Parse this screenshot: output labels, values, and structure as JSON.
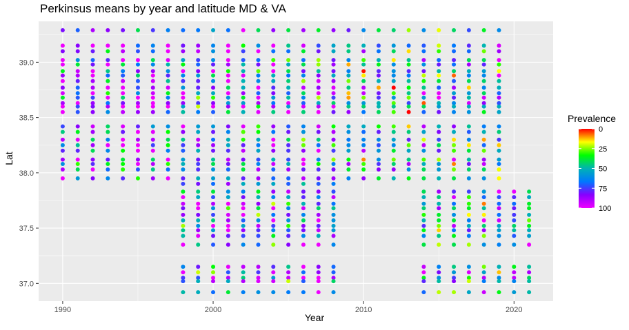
{
  "chart_data": {
    "type": "scatter",
    "title": "Perkinsus means by year and latitude MD & VA",
    "xlabel": "Year",
    "ylabel": "Lat",
    "xlim": [
      1988.4,
      2022.6
    ],
    "ylim": [
      36.84,
      39.37
    ],
    "x_ticks": [
      1990,
      2000,
      2010,
      2020
    ],
    "y_ticks": [
      37.0,
      37.5,
      38.0,
      38.5,
      39.0
    ],
    "grid": true,
    "legend": {
      "title": "Prevalence",
      "placement": "right",
      "ticks": [
        0,
        25,
        50,
        75,
        100
      ],
      "colormap": [
        "#ff0000",
        "#ffff00",
        "#00ff00",
        "#00b3b3",
        "#0077ff",
        "#8800ff",
        "#ee00ff"
      ],
      "reversed": true
    },
    "colors": {
      "panel_background": "#ebebeb",
      "grid_major": "#ffffff",
      "tick_label": "#4d4d4d"
    },
    "series": [
      {
        "years": [
          1990,
          1991,
          1992,
          1993,
          1994,
          1995,
          1996,
          1997
        ],
        "lats": [
          39.29,
          39.15,
          39.1,
          39.02,
          38.98,
          38.92,
          38.88,
          38.83,
          38.77,
          38.72,
          38.68,
          38.63,
          38.6,
          38.55,
          38.42,
          38.37,
          38.3,
          38.25,
          38.2,
          38.12,
          38.08,
          38.03,
          37.95
        ],
        "prevalence_mean": 80
      },
      {
        "years": [
          1998,
          1999,
          2000,
          2001,
          2002,
          2003,
          2004,
          2005,
          2006,
          2007,
          2008
        ],
        "lats": [
          39.29,
          39.15,
          39.1,
          39.02,
          38.98,
          38.92,
          38.88,
          38.83,
          38.77,
          38.72,
          38.68,
          38.63,
          38.6,
          38.55,
          38.42,
          38.37,
          38.3,
          38.25,
          38.2,
          38.12,
          38.08,
          38.03,
          37.95,
          37.9,
          37.83,
          37.78,
          37.72,
          37.68,
          37.62,
          37.57,
          37.52,
          37.48,
          37.43,
          37.35,
          37.15,
          37.1,
          37.05,
          37.02,
          36.92
        ],
        "prevalence_mean": 70
      },
      {
        "years": [
          2009,
          2010,
          2011,
          2012,
          2013
        ],
        "lats": [
          39.29,
          39.15,
          39.1,
          39.02,
          38.98,
          38.92,
          38.88,
          38.83,
          38.77,
          38.72,
          38.68,
          38.63,
          38.6,
          38.55,
          38.42,
          38.37,
          38.3,
          38.25,
          38.2,
          38.12,
          38.08,
          38.03,
          37.95
        ],
        "prevalence_mean": 45
      },
      {
        "years": [
          2014,
          2015,
          2016,
          2017,
          2018,
          2019
        ],
        "lats": [
          39.29,
          39.15,
          39.1,
          39.02,
          38.98,
          38.92,
          38.88,
          38.83,
          38.77,
          38.72,
          38.68,
          38.63,
          38.6,
          38.55,
          38.42,
          38.37,
          38.3,
          38.25,
          38.2,
          38.12,
          38.08,
          38.03,
          37.95,
          37.83,
          37.78,
          37.72,
          37.68,
          37.62,
          37.57,
          37.52,
          37.48,
          37.43,
          37.35,
          37.15,
          37.1,
          37.05,
          37.02,
          36.92
        ],
        "prevalence_mean": 55
      },
      {
        "years": [
          2020,
          2021
        ],
        "lats": [
          37.83,
          37.78,
          37.72,
          37.68,
          37.62,
          37.57,
          37.52,
          37.48,
          37.43,
          37.35,
          37.15,
          37.1,
          37.05,
          37.02,
          36.92
        ],
        "prevalence_mean": 55
      }
    ]
  }
}
